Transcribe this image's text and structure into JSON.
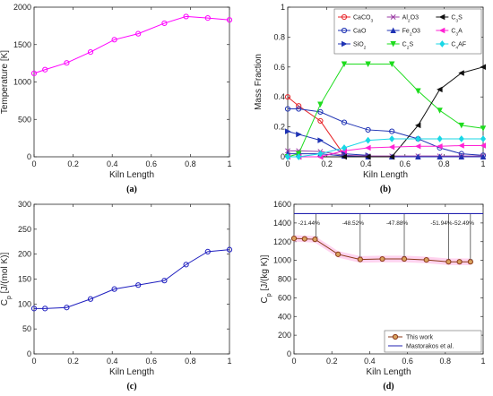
{
  "chart_data": [
    {
      "id": "a",
      "type": "line",
      "caption": "(a)",
      "xlabel": "Kiln Length",
      "ylabel": "Temperature [K]",
      "xlim": [
        0,
        1
      ],
      "ylim": [
        0,
        2000
      ],
      "xticks": [
        "0",
        "0.2",
        "0.4",
        "0.6",
        "0.8",
        "1"
      ],
      "yticks": [
        "0",
        "500",
        "1000",
        "1500",
        "2000"
      ],
      "grid": false,
      "series": [
        {
          "color": "#ff00ff",
          "marker": "circle",
          "x": [
            0,
            0.056,
            0.167,
            0.289,
            0.411,
            0.533,
            0.667,
            0.778,
            0.889,
            1.0
          ],
          "y": [
            1115,
            1165,
            1255,
            1400,
            1565,
            1645,
            1785,
            1875,
            1855,
            1830
          ]
        }
      ]
    },
    {
      "id": "b",
      "type": "line",
      "caption": "(b)",
      "xlabel": "Kiln Length",
      "ylabel": "Mass Fraction",
      "xlim": [
        0,
        1
      ],
      "ylim": [
        0,
        1
      ],
      "xticks": [
        "0",
        "0.2",
        "0.4",
        "0.6",
        "0.8",
        "1"
      ],
      "yticks": [
        "0",
        "0.2",
        "0.4",
        "0.6",
        "0.8",
        "1"
      ],
      "grid": false,
      "legend_position": "top-right",
      "legend_columns": 3,
      "series": [
        {
          "name": "CaCO",
          "sub": "3",
          "after": "",
          "color": "#e8262a",
          "marker": "circle",
          "x": [
            0,
            0.056,
            0.167,
            0.289,
            0.411
          ],
          "y": [
            0.4,
            0.34,
            0.24,
            0.01,
            0.0
          ]
        },
        {
          "name": "CaO",
          "sub": "",
          "after": "",
          "color": "#1f33b4",
          "marker": "circle",
          "x": [
            0,
            0.056,
            0.167,
            0.289,
            0.411,
            0.533,
            0.667,
            0.778,
            0.889,
            1.0
          ],
          "y": [
            0.32,
            0.32,
            0.3,
            0.23,
            0.18,
            0.17,
            0.12,
            0.06,
            0.02,
            0.01
          ]
        },
        {
          "name": "SiO",
          "sub": "2",
          "after": "",
          "color": "#1f33b4",
          "marker": "triangle-right",
          "x": [
            0,
            0.056,
            0.167,
            0.289,
            0.411
          ],
          "y": [
            0.17,
            0.15,
            0.11,
            0.02,
            0.01
          ]
        },
        {
          "name": "Al",
          "sub": "2",
          "after": "O3",
          "color": "#9b3da4",
          "marker": "x",
          "x": [
            0,
            0.056,
            0.167,
            0.289,
            0.411,
            0.533,
            0.667,
            0.778,
            0.889,
            1.0
          ],
          "y": [
            0.04,
            0.04,
            0.035,
            0.01,
            0.005,
            0.005,
            0.005,
            0.005,
            0.005,
            0.005
          ]
        },
        {
          "name": "Fe",
          "sub": "2",
          "after": "O3",
          "color": "#1f33b4",
          "marker": "triangle-up",
          "x": [
            0,
            0.056,
            0.167,
            0.289,
            0.411,
            0.533,
            0.667,
            0.778,
            0.889,
            1.0
          ],
          "y": [
            0.02,
            0.02,
            0.02,
            0.005,
            0.0,
            0.0,
            0.0,
            0.0,
            0.0,
            0.0
          ]
        },
        {
          "name": "C",
          "sub": "2",
          "after": "S",
          "color": "#1ddc1d",
          "marker": "triangle-down",
          "x": [
            0,
            0.056,
            0.167,
            0.289,
            0.411,
            0.533,
            0.667,
            0.778,
            0.889,
            1.0
          ],
          "y": [
            0.0,
            0.02,
            0.35,
            0.62,
            0.62,
            0.62,
            0.44,
            0.31,
            0.21,
            0.19
          ]
        },
        {
          "name": "C",
          "sub": "3",
          "after": "S",
          "color": "#111111",
          "marker": "triangle-left",
          "x": [
            0,
            0.056,
            0.167,
            0.289,
            0.411,
            0.533,
            0.667,
            0.778,
            0.889,
            1.0
          ],
          "y": [
            0.0,
            0.0,
            0.0,
            0.0,
            0.0,
            0.0,
            0.21,
            0.45,
            0.56,
            0.6
          ]
        },
        {
          "name": "C",
          "sub": "3",
          "after": "A",
          "color": "#ff22d4",
          "marker": "triangle-left",
          "x": [
            0,
            0.056,
            0.167,
            0.289,
            0.411,
            0.533,
            0.667,
            0.778,
            0.889,
            1.0
          ],
          "y": [
            0.0,
            0.0,
            0.0,
            0.04,
            0.06,
            0.065,
            0.07,
            0.07,
            0.075,
            0.075
          ]
        },
        {
          "name": "C",
          "sub": "4",
          "after": "AF",
          "color": "#19d7e6",
          "marker": "diamond",
          "x": [
            0,
            0.056,
            0.167,
            0.289,
            0.411,
            0.533,
            0.667,
            0.778,
            0.889,
            1.0
          ],
          "y": [
            0.0,
            0.0,
            0.02,
            0.06,
            0.11,
            0.12,
            0.12,
            0.12,
            0.12,
            0.12
          ]
        }
      ]
    },
    {
      "id": "c",
      "type": "line",
      "caption": "(c)",
      "xlabel": "Kiln Length",
      "ylabel_main": "C",
      "ylabel_sub": "p",
      "ylabel_rest": " [J/(mol K)]",
      "xlim": [
        0,
        1
      ],
      "ylim": [
        0,
        300
      ],
      "xticks": [
        "0",
        "0.2",
        "0.4",
        "0.6",
        "0.8",
        "1"
      ],
      "yticks": [
        "0",
        "50",
        "100",
        "150",
        "200",
        "250",
        "300"
      ],
      "grid": false,
      "series": [
        {
          "color": "#1f1fbf",
          "marker": "circle",
          "x": [
            0,
            0.056,
            0.167,
            0.289,
            0.411,
            0.533,
            0.667,
            0.778,
            0.889,
            1.0
          ],
          "y": [
            91,
            91,
            93,
            110,
            130,
            138,
            147,
            179,
            205,
            209
          ]
        }
      ]
    },
    {
      "id": "d",
      "type": "line",
      "caption": "(d)",
      "xlabel": "Kiln Length",
      "ylabel_main": "C",
      "ylabel_sub": "p",
      "ylabel_rest": " [J/(kg K)]",
      "xlim": [
        0,
        1
      ],
      "ylim": [
        0,
        1600
      ],
      "xticks": [
        "0",
        "0.2",
        "0.4",
        "0.6",
        "0.8",
        "1"
      ],
      "yticks": [
        "0",
        "200",
        "400",
        "600",
        "800",
        "1000",
        "1200",
        "1400",
        "1600"
      ],
      "grid": false,
      "legend_position": "bottom-right",
      "series": [
        {
          "name": "This work",
          "color": "#8b3a1a",
          "fill": "#d9a25e",
          "band": "#ffc0e8",
          "marker": "circle",
          "x": [
            0,
            0.056,
            0.111,
            0.233,
            0.35,
            0.467,
            0.583,
            0.7,
            0.817,
            0.875,
            0.933
          ],
          "y": [
            1235,
            1230,
            1225,
            1065,
            1010,
            1015,
            1015,
            1005,
            985,
            985,
            985
          ]
        },
        {
          "name": "Mastorakos et al.",
          "color": "#2222b0",
          "marker": "none",
          "x": [
            0,
            1.0
          ],
          "y": [
            1500,
            1500
          ]
        }
      ],
      "annotations": [
        {
          "x": 0.117,
          "label": "-21.44%",
          "y_top": 1500,
          "y_bottom": 1225
        },
        {
          "x": 0.35,
          "label": "-48.52%",
          "y_top": 1500,
          "y_bottom": 1010
        },
        {
          "x": 0.583,
          "label": "-47.88%",
          "y_top": 1500,
          "y_bottom": 1015
        },
        {
          "x": 0.817,
          "label": "-51.94%",
          "y_top": 1500,
          "y_bottom": 985
        },
        {
          "x": 0.933,
          "label": "-52.49%",
          "y_top": 1500,
          "y_bottom": 985
        }
      ]
    }
  ]
}
